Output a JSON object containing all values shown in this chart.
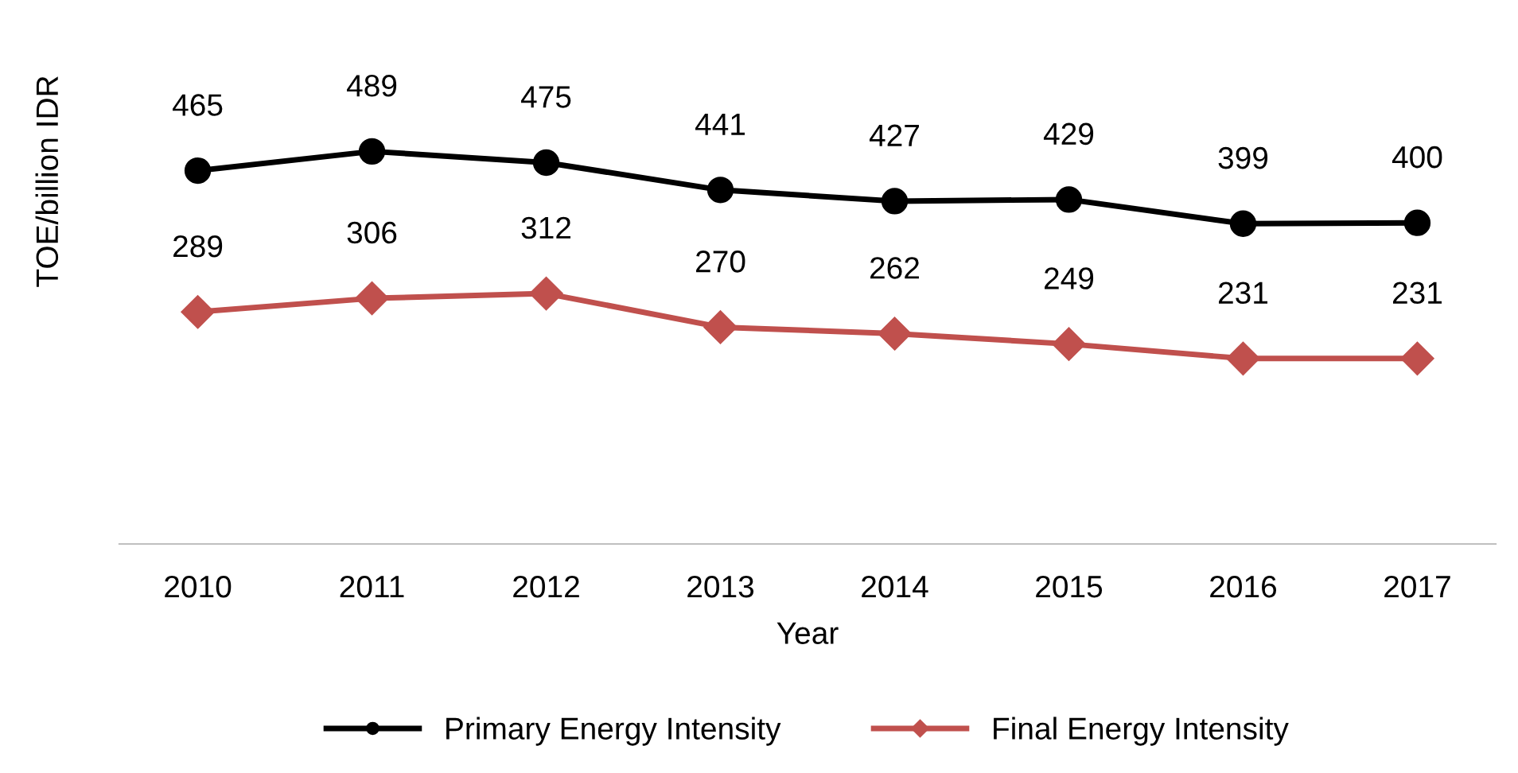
{
  "chart_data": {
    "type": "line",
    "xlabel": "Year",
    "ylabel": "TOE/billion IDR",
    "categories": [
      "2010",
      "2011",
      "2012",
      "2013",
      "2014",
      "2015",
      "2016",
      "2017"
    ],
    "series": [
      {
        "name": "Primary Energy Intensity",
        "color": "#000000",
        "marker": "circle",
        "values": [
          465,
          489,
          475,
          441,
          427,
          429,
          399,
          400
        ]
      },
      {
        "name": "Final Energy Intensity",
        "color": "#c0504d",
        "marker": "diamond",
        "values": [
          289,
          306,
          312,
          270,
          262,
          249,
          231,
          231
        ]
      }
    ],
    "tick_labels": "x",
    "data_labels": true,
    "legend": "bottom",
    "grid": false,
    "line_style": "solid"
  }
}
